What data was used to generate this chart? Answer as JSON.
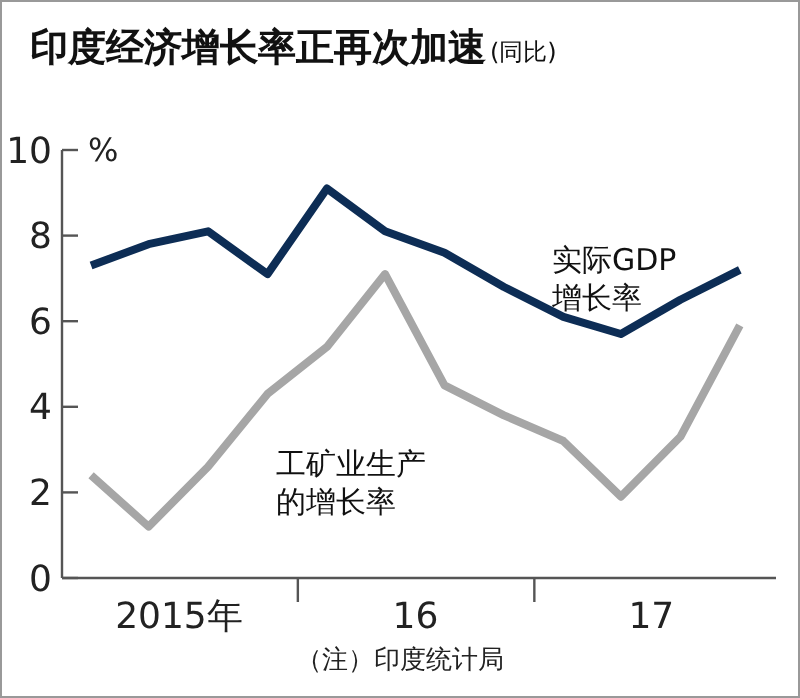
{
  "chart_data": {
    "type": "line",
    "title": "印度经济增长率正再次加速",
    "subtitle": "(同比)",
    "ylabel": "%",
    "x": [
      "2015-02-15",
      "2015-05-15",
      "2015-08-15",
      "2015-11-15",
      "2016-02-15",
      "2016-05-15",
      "2016-08-15",
      "2016-11-15",
      "2017-02-15",
      "2017-05-15",
      "2017-08-15",
      "2017-11-15"
    ],
    "xlim": [
      "2015-01-01",
      "2018-01-10"
    ],
    "xticks": [
      {
        "value": "2015-07-01",
        "label": "2015年"
      },
      {
        "value": "2016-01-01",
        "label": null
      },
      {
        "value": "2016-07-01",
        "label": "16"
      },
      {
        "value": "2017-01-01",
        "label": null
      },
      {
        "value": "2017-07-01",
        "label": "17"
      }
    ],
    "ylim": [
      0,
      10
    ],
    "yticks": [
      0,
      2,
      4,
      6,
      8,
      10
    ],
    "grid": false,
    "legend": false,
    "marker": "none",
    "line_style": "solid",
    "series": [
      {
        "name": "实际GDP增长率",
        "color": "#0d2d55",
        "values": [
          7.3,
          7.8,
          8.1,
          7.1,
          9.1,
          8.1,
          7.6,
          6.8,
          6.1,
          5.7,
          6.5,
          7.2
        ]
      },
      {
        "name": "工矿业生产的增长率",
        "color": "#a6a6a6",
        "values": [
          2.4,
          1.2,
          2.6,
          4.3,
          5.4,
          7.1,
          4.5,
          3.8,
          3.2,
          1.9,
          3.3,
          5.9
        ]
      }
    ],
    "annotations": [
      "（注）印度统计局"
    ]
  }
}
